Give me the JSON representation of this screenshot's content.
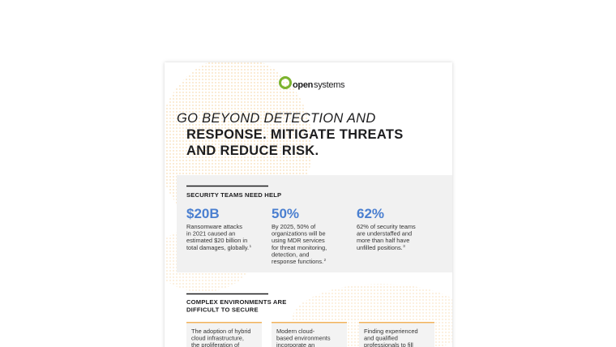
{
  "logo": {
    "part1": "open",
    "part2": "systems"
  },
  "headline": {
    "line1": "GO BEYOND DETECTION AND",
    "line2": "RESPONSE. MITIGATE THREATS",
    "line3": "AND REDUCE RISK."
  },
  "section1": {
    "heading": "SECURITY TEAMS NEED HELP",
    "stats": [
      {
        "value": "$20B",
        "lines": [
          "Ransomware attacks",
          "in 2021 caused an",
          "estimated $20 billion in",
          "total damages, globally."
        ],
        "note": "1"
      },
      {
        "value": "50%",
        "lines": [
          "By 2025, 50% of",
          "organizations will be",
          "using MDR services",
          "for threat monitoring,",
          "detection, and",
          "response functions."
        ],
        "note": "2"
      },
      {
        "value": "62%",
        "lines": [
          "62% of security teams",
          "are understaffed and",
          "more than half have",
          "unfilled positions."
        ],
        "note": "3"
      }
    ]
  },
  "section2": {
    "heading": [
      "COMPLEX ENVIRONMENTS ARE",
      "DIFFICULT TO SECURE"
    ],
    "cards": [
      {
        "lines": [
          "The adoption of hybrid",
          "cloud infrastructure,",
          "the proliferation of"
        ]
      },
      {
        "lines": [
          "Modern cloud-",
          "based environments",
          "incorporate an"
        ]
      },
      {
        "lines": [
          "Finding experienced",
          "and qualified",
          "professionals to fill"
        ]
      }
    ]
  }
}
